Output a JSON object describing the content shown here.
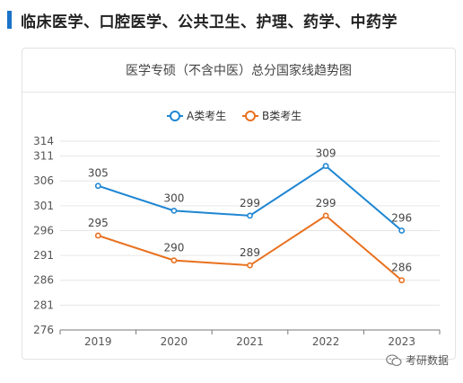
{
  "header": {
    "title": "临床医学、口腔医学、公共卫生、护理、药学、中药学",
    "accent_color": "#1a73c8"
  },
  "watermark": {
    "text": "考研数据",
    "icon": "wechat-icon"
  },
  "chart_data": {
    "type": "line",
    "title": "医学专硕（不含中医）总分国家线趋势图",
    "categories": [
      "2019",
      "2020",
      "2021",
      "2022",
      "2023"
    ],
    "series": [
      {
        "name": "A类考生",
        "color": "#1f86d2",
        "values": [
          305,
          300,
          299,
          309,
          296
        ]
      },
      {
        "name": "B类考生",
        "color": "#e8701f",
        "values": [
          295,
          290,
          289,
          299,
          286
        ]
      }
    ],
    "yticks": [
      "314",
      "311",
      "306",
      "301",
      "296",
      "291",
      "286",
      "281",
      "276"
    ],
    "ylim": [
      276,
      314
    ],
    "grid": true,
    "legend": "top-center",
    "xlabel": "",
    "ylabel": ""
  }
}
